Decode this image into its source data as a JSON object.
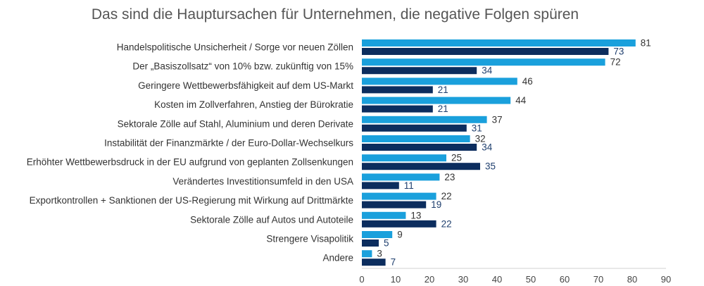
{
  "chart_data": {
    "type": "bar",
    "orientation": "horizontal",
    "title": "Das sind die Hauptursachen für Unternehmen, die negative Folgen spüren",
    "xlabel": "",
    "ylabel": "",
    "xlim": [
      0,
      90
    ],
    "xticks": [
      "0",
      "10",
      "20",
      "30",
      "40",
      "50",
      "60",
      "70",
      "80",
      "90"
    ],
    "grid": false,
    "legend": "none",
    "categories": [
      "Handelspolitische Unsicherheit / Sorge vor neuen Zöllen",
      "Der „Basiszollsatz“ von 10% bzw. zukünftig von 15%",
      "Geringere Wettbewerbsfähigkeit auf dem US-Markt",
      "Kosten im Zollverfahren, Anstieg der Bürokratie",
      "Sektorale Zölle auf Stahl, Aluminium und deren Derivate",
      "Instabilität der Finanzmärkte / der Euro-Dollar-Wechselkurs",
      "Erhöhter Wettbewerbsdruck in der EU aufgrund von geplanten Zollsenkungen",
      "Verändertes Investitionsumfeld in den USA",
      "Exportkontrollen + Sanktionen der US-Regierung mit Wirkung auf Drittmärkte",
      "Sektorale Zölle auf Autos und Autoteile",
      "Strengere Visapolitik",
      "Andere"
    ],
    "series": [
      {
        "color": "#1aa0dc",
        "label_color": "#333333",
        "values": [
          81,
          72,
          46,
          44,
          37,
          32,
          25,
          23,
          22,
          13,
          9,
          3
        ]
      },
      {
        "color": "#0c2d5e",
        "label_color": "#1f3f6e",
        "values": [
          73,
          34,
          21,
          21,
          31,
          34,
          35,
          11,
          19,
          22,
          5,
          7
        ]
      }
    ]
  }
}
